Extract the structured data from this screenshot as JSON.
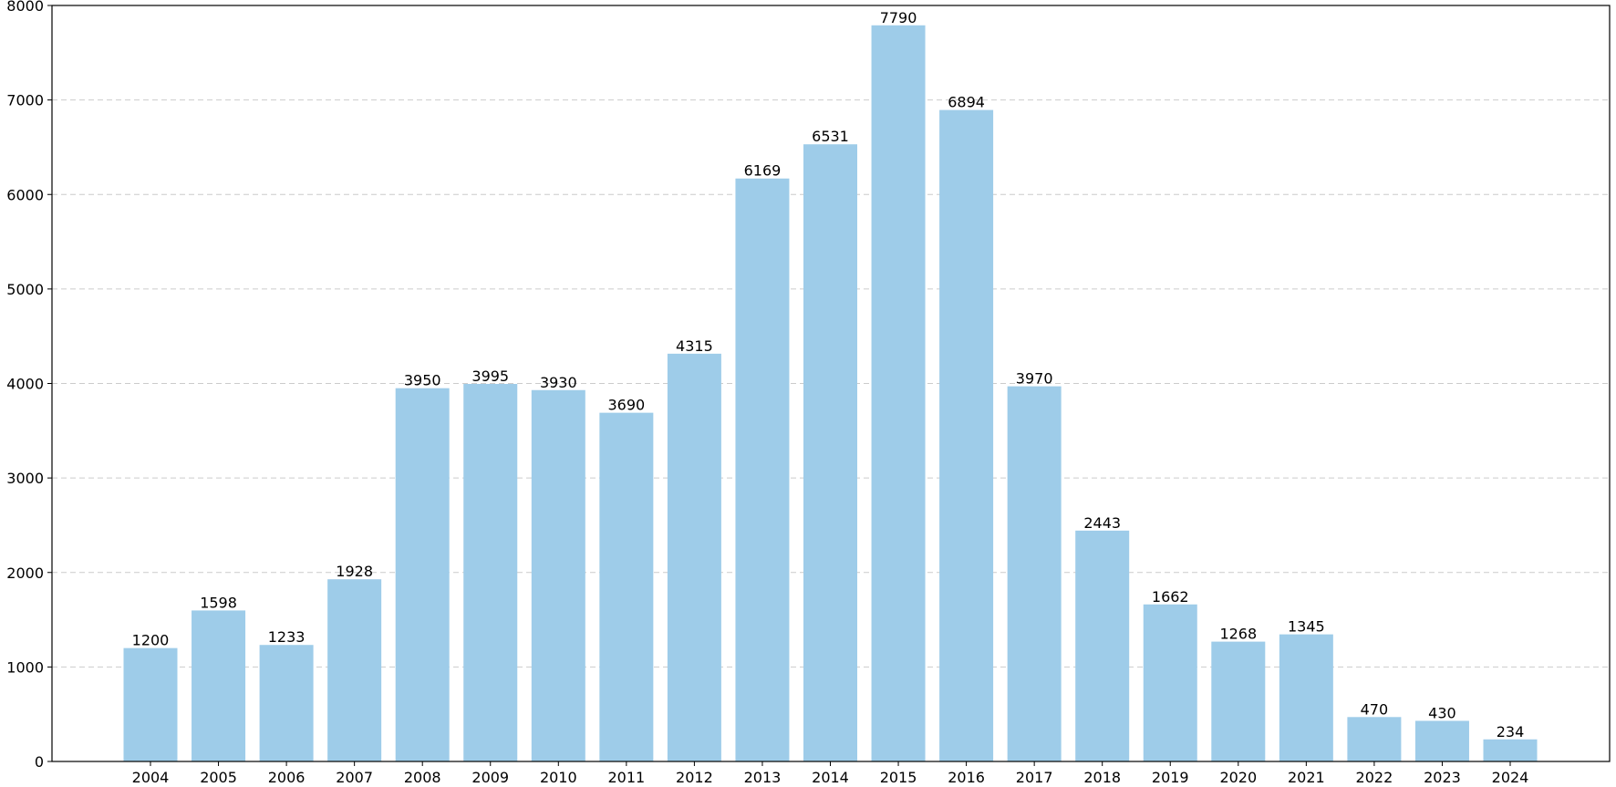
{
  "chart_data": {
    "type": "bar",
    "title": "",
    "xlabel": "",
    "ylabel": "",
    "categories": [
      "2004",
      "2005",
      "2006",
      "2007",
      "2008",
      "2009",
      "2010",
      "2011",
      "2012",
      "2013",
      "2014",
      "2015",
      "2016",
      "2017",
      "2018",
      "2019",
      "2020",
      "2021",
      "2022",
      "2023",
      "2024"
    ],
    "values": [
      1200,
      1598,
      1233,
      1928,
      3950,
      3995,
      3930,
      3690,
      4315,
      6169,
      6531,
      7790,
      6894,
      3970,
      2443,
      1662,
      1268,
      1345,
      470,
      430,
      234
    ],
    "ylim": [
      0,
      8000
    ],
    "yticks": [
      0,
      1000,
      2000,
      3000,
      4000,
      5000,
      6000,
      7000,
      8000
    ],
    "grid": "horizontal dashed",
    "legend": "none",
    "bar_color": "#9ecce9"
  }
}
